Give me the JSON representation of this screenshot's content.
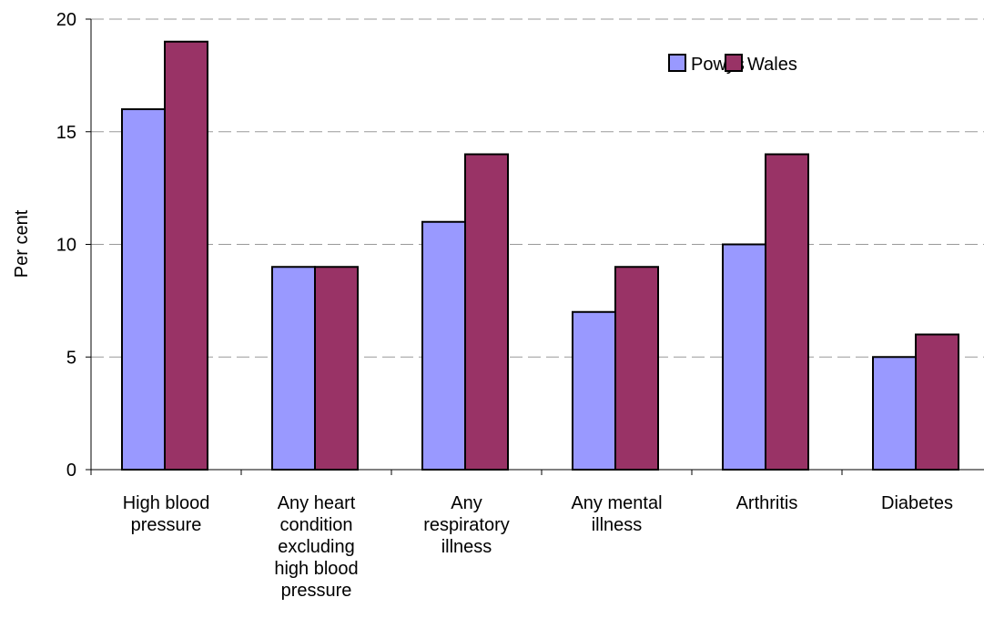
{
  "chart_data": {
    "type": "bar",
    "y_label": "Per cent",
    "categories": [
      "High blood pressure",
      "Any heart condition excluding high blood pressure",
      "Any respiratory illness",
      "Any mental illness",
      "Arthritis",
      "Diabetes"
    ],
    "series": [
      {
        "name": "Powys",
        "color": "#9999ff",
        "values": [
          16,
          9,
          11,
          7,
          10,
          5
        ]
      },
      {
        "name": "Wales",
        "color": "#993366",
        "values": [
          19,
          9,
          14,
          9,
          14,
          6
        ]
      }
    ],
    "ylim": [
      0,
      20
    ],
    "yticks": [
      0,
      5,
      10,
      15,
      20
    ],
    "grid": true,
    "legend": "upper right"
  }
}
